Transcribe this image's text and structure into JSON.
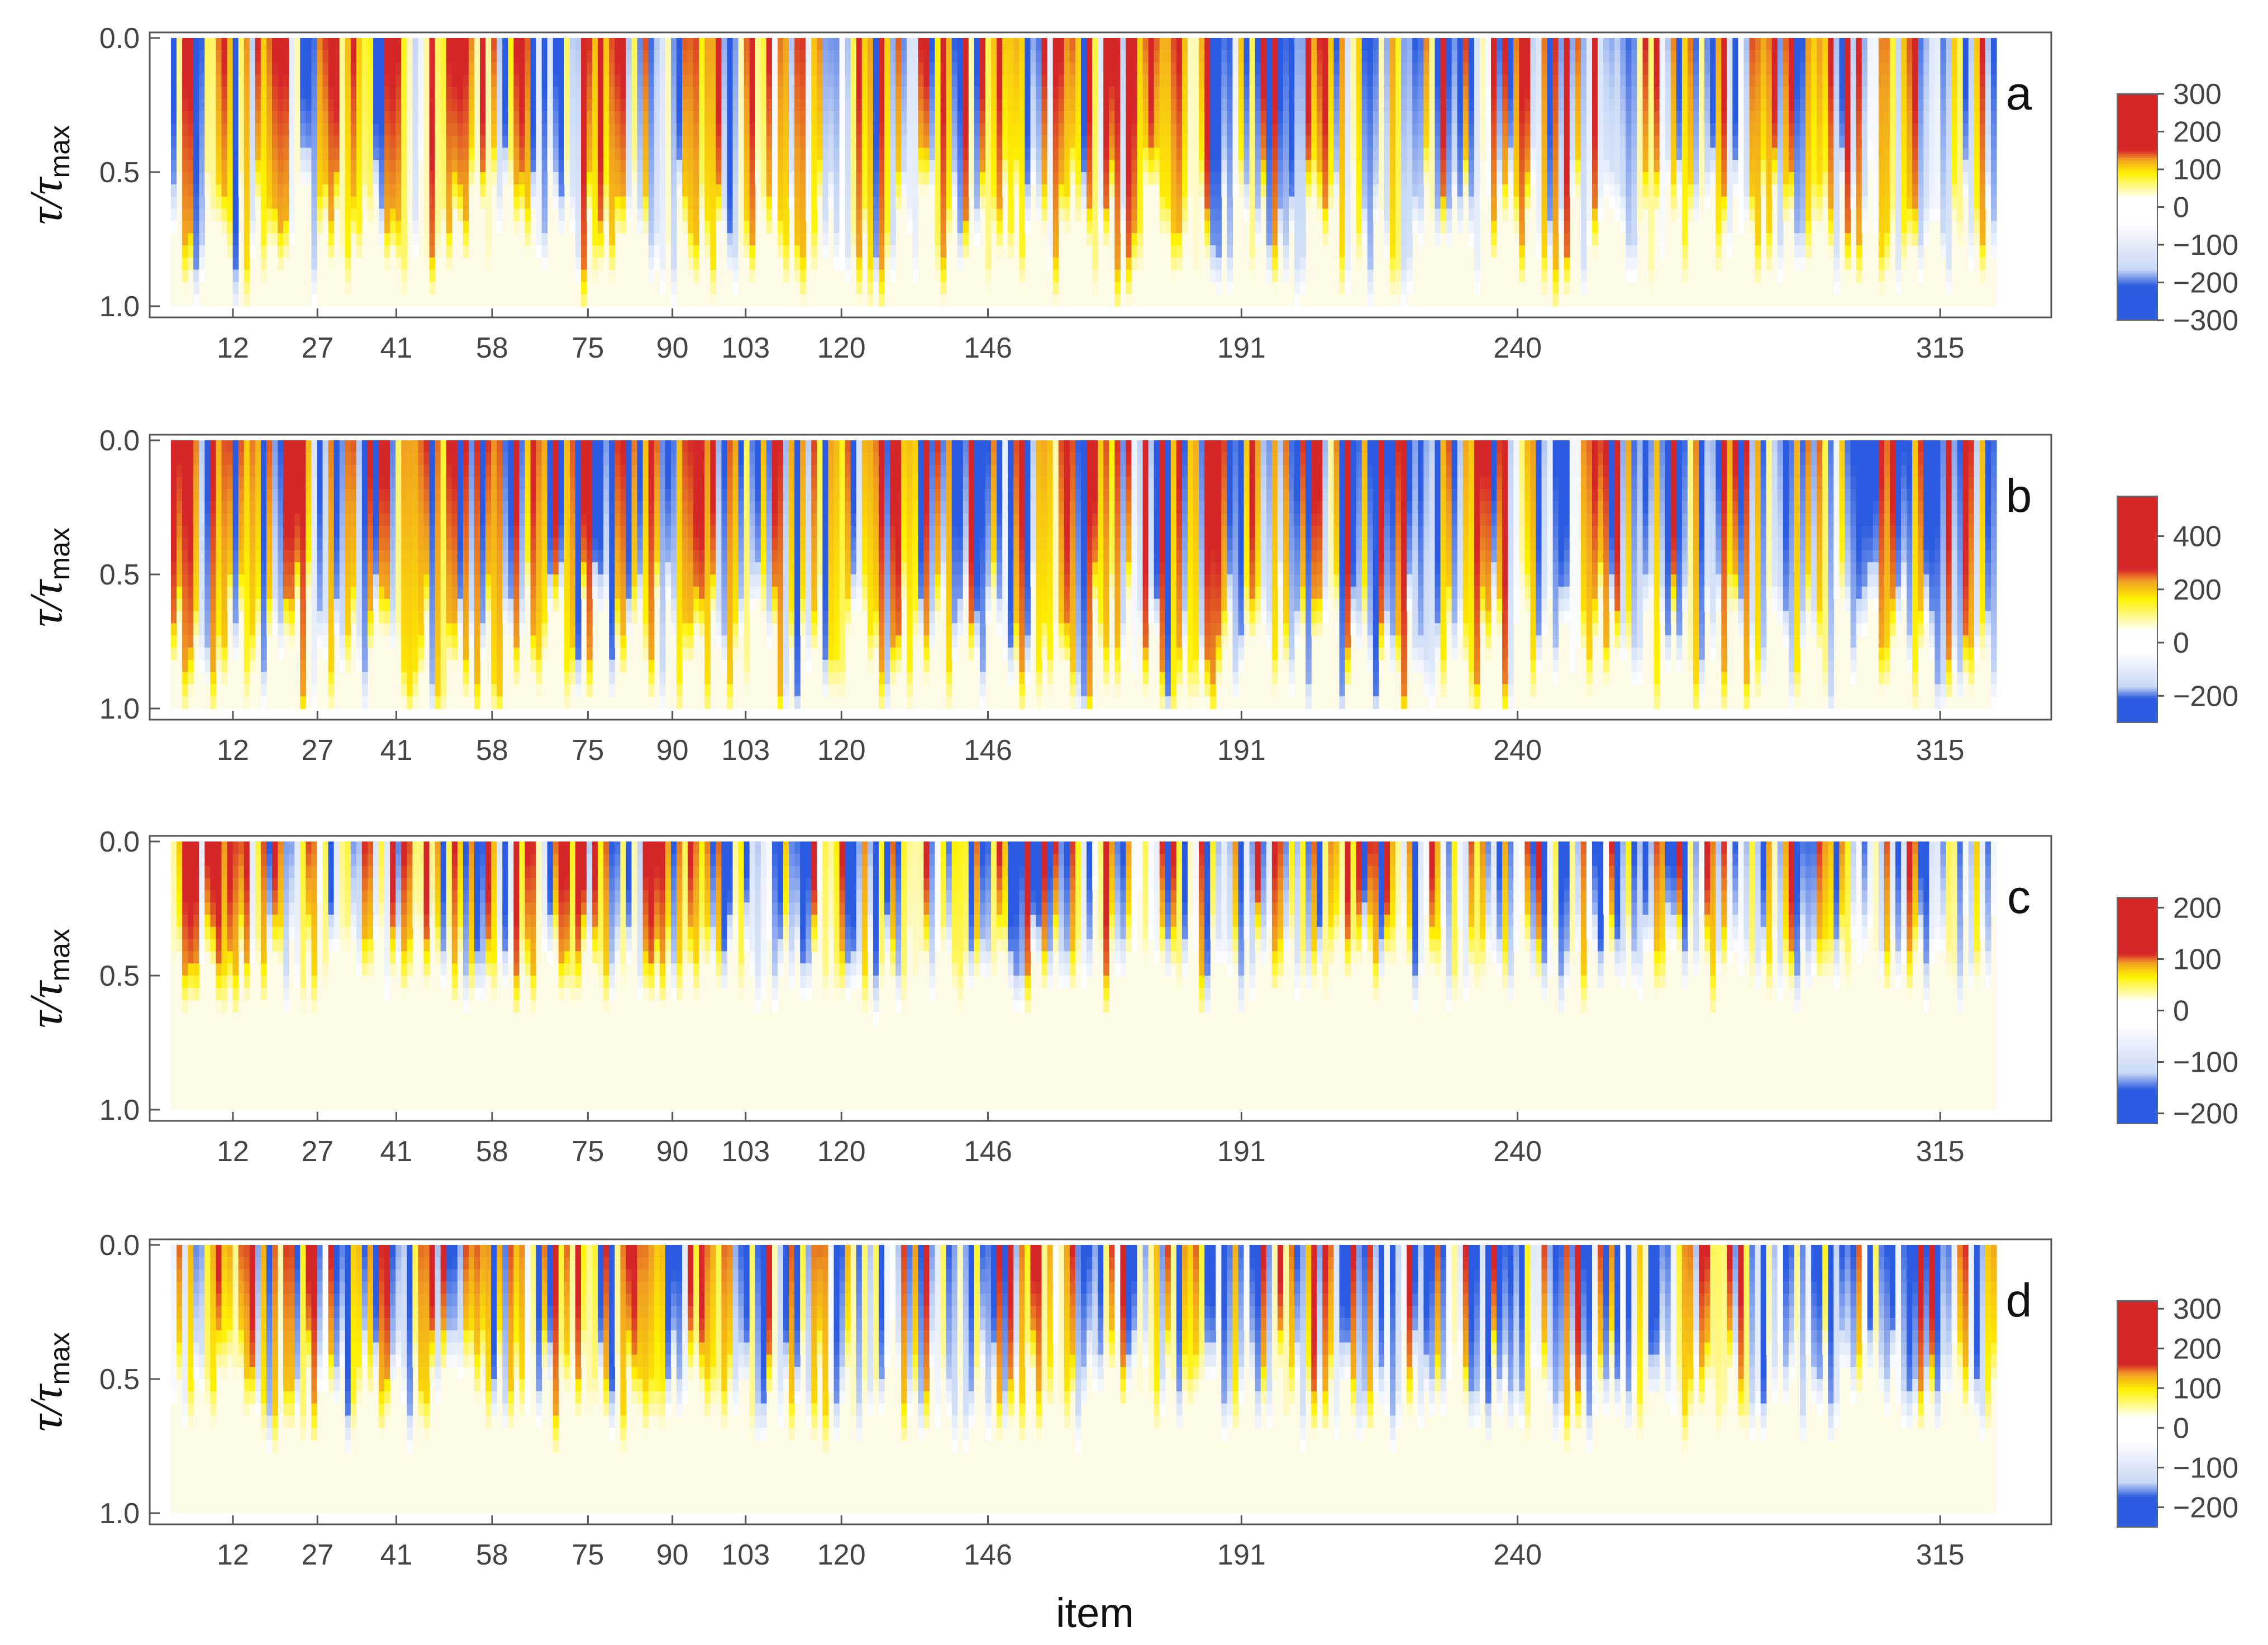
{
  "chart_data": {
    "type": "heatmap",
    "panel_count": 4,
    "ylabel": "τ/τ",
    "ylabel_subscript": "max",
    "xlabel": "item",
    "x_range": [
      1,
      325
    ],
    "y_range": [
      0.0,
      1.0
    ],
    "x_ticks": [
      12,
      27,
      41,
      58,
      75,
      90,
      103,
      120,
      146,
      191,
      240,
      315
    ],
    "y_ticks": [
      "0.0",
      "0.5",
      "1.0"
    ],
    "colors": {
      "strong_positive": "#d62728",
      "mid_positive": "#f0a020",
      "weak_positive": "#fff200",
      "zero": "#ffffff",
      "weak_negative": "#c8d8f5",
      "strong_negative": "#2a5be0",
      "background": "#fdfbe6"
    },
    "panels": [
      {
        "label": "a",
        "colorbar_range": [
          -300,
          300
        ],
        "colorbar_ticks": [
          "300",
          "200",
          "100",
          "0",
          "−100",
          "−200",
          "−300"
        ],
        "colorbar_tick_values": [
          300,
          200,
          100,
          0,
          -100,
          -200,
          -300
        ],
        "active_fraction": 0.78,
        "strong_depth": 0.72,
        "negative_share": 0.38
      },
      {
        "label": "b",
        "colorbar_range": [
          -300,
          550
        ],
        "colorbar_ticks": [
          "400",
          "200",
          "0",
          "−200"
        ],
        "colorbar_tick_values": [
          400,
          200,
          0,
          -200
        ],
        "active_fraction": 0.92,
        "strong_depth": 0.78,
        "negative_share": 0.48
      },
      {
        "label": "c",
        "colorbar_range": [
          -220,
          220
        ],
        "colorbar_ticks": [
          "200",
          "100",
          "0",
          "−100",
          "−200"
        ],
        "colorbar_tick_values": [
          200,
          100,
          0,
          -100,
          -200
        ],
        "active_fraction": 0.62,
        "strong_depth": 0.42,
        "negative_share": 0.46
      },
      {
        "label": "d",
        "colorbar_range": [
          -250,
          320
        ],
        "colorbar_ticks": [
          "300",
          "200",
          "100",
          "0",
          "−100",
          "−200"
        ],
        "colorbar_tick_values": [
          300,
          200,
          100,
          0,
          -100,
          -200
        ],
        "active_fraction": 0.72,
        "strong_depth": 0.52,
        "negative_share": 0.5
      }
    ]
  }
}
